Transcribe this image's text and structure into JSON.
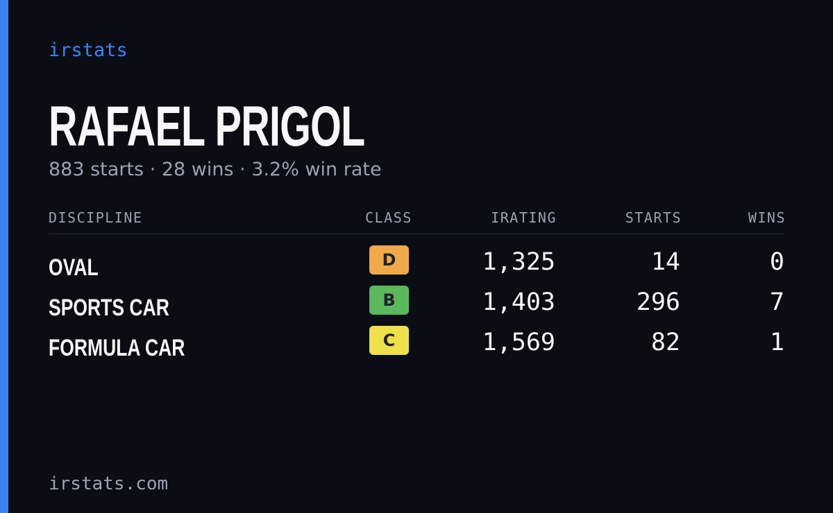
{
  "brand": "irstats",
  "driver": {
    "name": "RAFAEL PRIGOL",
    "summary": "883 starts · 28 wins · 3.2% win rate"
  },
  "table": {
    "headers": [
      "DISCIPLINE",
      "CLASS",
      "IRATING",
      "STARTS",
      "WINS"
    ],
    "rows": [
      [
        "OVAL",
        "D",
        "1,325",
        "14",
        "0"
      ],
      [
        "SPORTS CAR",
        "B",
        "1,403",
        "296",
        "7"
      ],
      [
        "FORMULA CAR",
        "C",
        "1,569",
        "82",
        "1"
      ]
    ]
  },
  "footer": "irstats.com"
}
